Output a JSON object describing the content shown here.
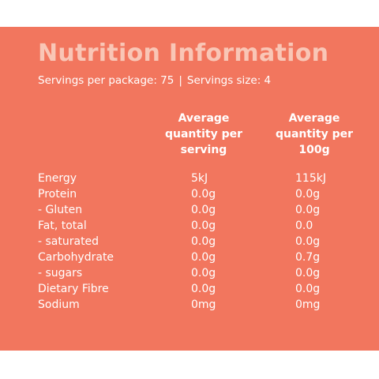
{
  "title": "Nutrition Information",
  "servings": {
    "per_package": "Servings per package: 75",
    "separator": "|",
    "size": "Servings size: 4"
  },
  "columns": {
    "per_serving": "Average quantity per serving",
    "per_100g": "Average quantity per 100g"
  },
  "rows": [
    {
      "name": "Energy",
      "per_serving": "5kJ",
      "per_100g": "115kJ"
    },
    {
      "name": "Protein",
      "per_serving": "0.0g",
      "per_100g": "0.0g"
    },
    {
      "name": "- Gluten",
      "per_serving": "0.0g",
      "per_100g": "0.0g"
    },
    {
      "name": "Fat, total",
      "per_serving": "0.0g",
      "per_100g": "0.0"
    },
    {
      "name": "- saturated",
      "per_serving": "0.0g",
      "per_100g": "0.0g"
    },
    {
      "name": "Carbohydrate",
      "per_serving": "0.0g",
      "per_100g": "0.7g"
    },
    {
      "name": "- sugars",
      "per_serving": "0.0g",
      "per_100g": "0.0g"
    },
    {
      "name": "Dietary Fibre",
      "per_serving": "0.0g",
      "per_100g": "0.0g"
    },
    {
      "name": "Sodium",
      "per_serving": "0mg",
      "per_100g": "0mg"
    }
  ],
  "colors": {
    "panel_background": "#f2765e",
    "title": "#f9c6b6",
    "text": "#ffffff"
  }
}
